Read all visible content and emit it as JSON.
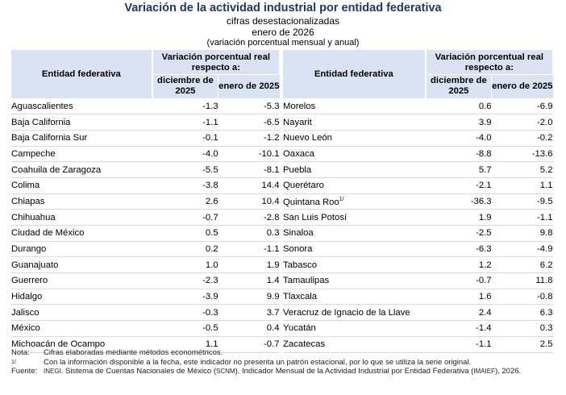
{
  "header": {
    "title": "Variación de la actividad industrial por entidad federativa",
    "subtitle": "cifras desestacionalizadas",
    "period": "enero de 2026",
    "note": "(variación porcentual mensual y anual)"
  },
  "table": {
    "col_entity": "Entidad federativa",
    "col_group": "Variación porcentual real respecto a:",
    "col_dec": "diciembre de 2025",
    "col_jan": "enero de 2025",
    "left_rows": [
      {
        "name": "Aguascalientes",
        "dec": "-1.3",
        "jan": "-5.3"
      },
      {
        "name": "Baja California",
        "dec": "-1.1",
        "jan": "-6.5"
      },
      {
        "name": "Baja California Sur",
        "dec": "-0.1",
        "jan": "-1.2"
      },
      {
        "name": "Campeche",
        "dec": "-4.0",
        "jan": "-10.1"
      },
      {
        "name": "Coahuila de Zaragoza",
        "dec": "-5.5",
        "jan": "-8.1"
      },
      {
        "name": "Colima",
        "dec": "-3.8",
        "jan": "14.4"
      },
      {
        "name": "Chiapas",
        "dec": "2.6",
        "jan": "10.4"
      },
      {
        "name": "Chihuahua",
        "dec": "-0.7",
        "jan": "-2.8"
      },
      {
        "name": "Ciudad de México",
        "dec": "0.5",
        "jan": "0.3"
      },
      {
        "name": "Durango",
        "dec": "0.2",
        "jan": "-1.1"
      },
      {
        "name": "Guanajuato",
        "dec": "1.0",
        "jan": "1.9"
      },
      {
        "name": "Guerrero",
        "dec": "-2.3",
        "jan": "1.4"
      },
      {
        "name": "Hidalgo",
        "dec": "-3.9",
        "jan": "9.9"
      },
      {
        "name": "Jalisco",
        "dec": "-0.3",
        "jan": "3.7"
      },
      {
        "name": "México",
        "dec": "-0.5",
        "jan": "0.4"
      },
      {
        "name": "Michoacán de Ocampo",
        "dec": "1.1",
        "jan": "-0.7"
      }
    ],
    "right_rows": [
      {
        "name": "Morelos",
        "dec": "0.6",
        "jan": "-6.9"
      },
      {
        "name": "Nayarit",
        "dec": "3.9",
        "jan": "-2.0"
      },
      {
        "name": "Nuevo León",
        "dec": "-4.0",
        "jan": "-0.2"
      },
      {
        "name": "Oaxaca",
        "dec": "-8.8",
        "jan": "-13.6"
      },
      {
        "name": "Puebla",
        "dec": "5.7",
        "jan": "5.2"
      },
      {
        "name": "Querétaro",
        "dec": "-2.1",
        "jan": "1.1"
      },
      {
        "name": "Quintana Roo",
        "sup": "1/",
        "dec": "-36.3",
        "jan": "-9.5"
      },
      {
        "name": "San Luis Potosí",
        "dec": "1.9",
        "jan": "-1.1"
      },
      {
        "name": "Sinaloa",
        "dec": "-2.5",
        "jan": "9.8"
      },
      {
        "name": "Sonora",
        "dec": "-6.3",
        "jan": "-4.9"
      },
      {
        "name": "Tabasco",
        "dec": "1.2",
        "jan": "6.2"
      },
      {
        "name": "Tamaulipas",
        "dec": "-0.7",
        "jan": "11.8"
      },
      {
        "name": "Tlaxcala",
        "dec": "1.6",
        "jan": "-0.8"
      },
      {
        "name": "Veracruz de Ignacio de la Llave",
        "dec": "2.4",
        "jan": "6.3"
      },
      {
        "name": "Yucatán",
        "dec": "-1.4",
        "jan": "0.3"
      },
      {
        "name": "Zacatecas",
        "dec": "-1.1",
        "jan": "2.5"
      }
    ]
  },
  "notes": {
    "nota_label": "Nota:",
    "nota_text": "Cifras elaboradas mediante métodos econométricos.",
    "sup_label": "1/",
    "sup_text": "Con la información disponible a la fecha, este indicador no presenta un patrón estacional, por lo que se utiliza la serie original.",
    "fuente_label": "Fuente:",
    "fuente_inegi": "INEGI",
    "fuente_text1": ". Sistema de Cuentas Nacionales de México (",
    "fuente_scnm": "SCNM",
    "fuente_text2": "). Indicador Mensual de la Actividad Industrial por Entidad Federativa (",
    "fuente_imaief": "IMAIEF",
    "fuente_text3": "), 2026."
  }
}
